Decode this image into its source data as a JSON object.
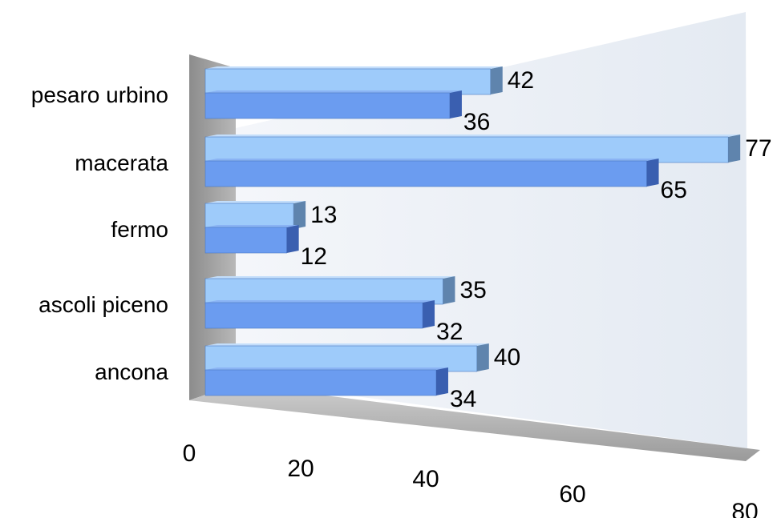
{
  "chart_data": {
    "type": "bar",
    "orientation": "horizontal",
    "style": "3d-clustered",
    "categories": [
      "ancona",
      "ascoli piceno",
      "fermo",
      "macerata",
      "pesaro urbino"
    ],
    "series": [
      {
        "values": [
          40,
          35,
          13,
          77,
          42
        ]
      },
      {
        "values": [
          34,
          32,
          12,
          65,
          36
        ]
      }
    ],
    "xlim": [
      0,
      80
    ],
    "x_ticks": [
      0,
      20,
      40,
      60,
      80
    ],
    "grid": false,
    "legend": "none"
  },
  "colors": {
    "series_top": "#9ecbfa",
    "series_bottom": "#6b9cf0",
    "cap_top": "#5f84ad",
    "cap_bottom": "#3a5fb0",
    "back_wall": "#e9eef5",
    "side_wall": "#a6a6a6",
    "floor": "#b3b3b3"
  }
}
